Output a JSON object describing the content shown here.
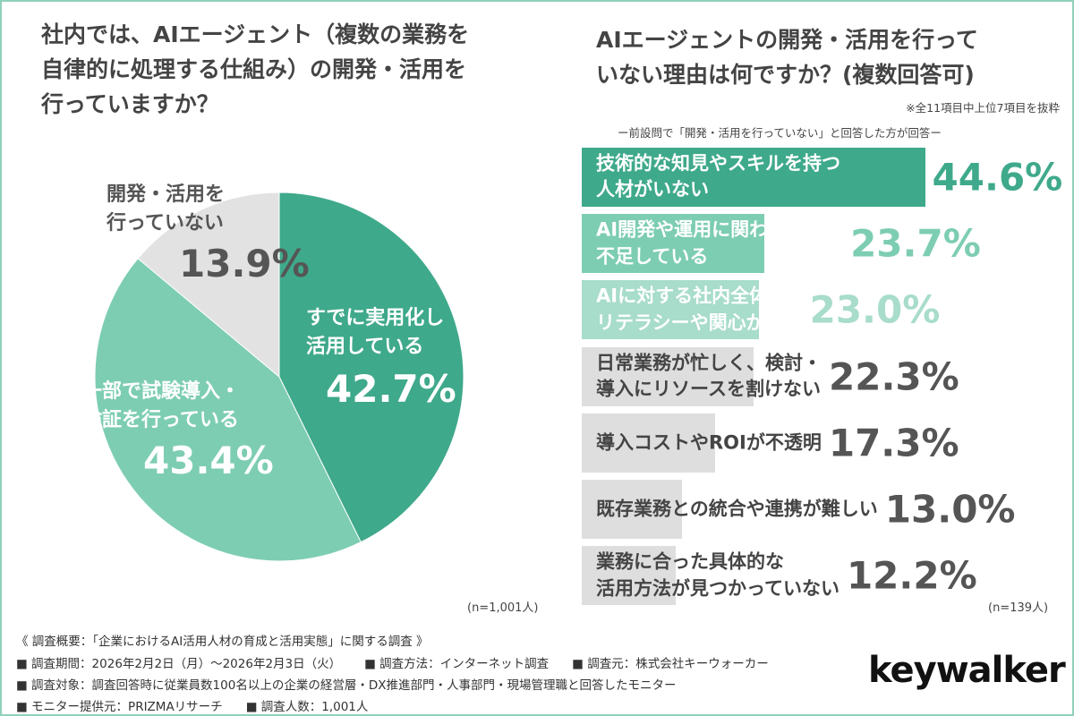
{
  "chart_data": [
    {
      "type": "pie",
      "title": "社内では、AIエージェント（複数の業務を\n自律的に処理する仕組み）の開発・活用を\n行っていますか？",
      "categories": [
        "すでに実用化し\n活用している",
        "一部で試験導入・\n検証を行っている",
        "開発・活用を\n行っていない"
      ],
      "values": [
        42.7,
        43.4,
        13.9
      ],
      "value_labels": [
        "42.7%",
        "43.4%",
        "13.9%"
      ],
      "colors": [
        "#3fa98b",
        "#7dcdb3",
        "#e2e2e2"
      ],
      "note": "(n=1,001人)"
    },
    {
      "type": "barh",
      "title": "AIエージェントの開発・活用を行って\nいない理由は何ですか？(複数回答可)",
      "annotation": "※全11項目中上位7項目を抜粋",
      "subtitle": "ー前設問で「開発・活用を行っていない」と回答した方が回答ー",
      "categories": [
        "技術的な知見やスキルを持つ\n人材がいない",
        "AI開発や運用に関わる人材が\n不足している",
        "AIに対する社内全体の\nリテラシーや関心が低い",
        "日常業務が忙しく、検討・\n導入にリソースを割けない",
        "導入コストやROIが不透明",
        "既存業務との統合や連携が難しい",
        "業務に合った具体的な\n活用方法が見つかっていない"
      ],
      "values": [
        44.6,
        23.7,
        23.0,
        22.3,
        17.3,
        13.0,
        12.2
      ],
      "value_labels": [
        "44.6%",
        "23.7%",
        "23.0%",
        "22.3%",
        "17.3%",
        "13.0%",
        "12.2%"
      ],
      "colors": [
        "#3fa98b",
        "#7dcdb3",
        "#a8dccb",
        "#dedede",
        "#dedede",
        "#dedede",
        "#dedede"
      ],
      "value_label_colors": [
        "#3fa98b",
        "#7dcdb3",
        "#a8dccb",
        "#555555",
        "#555555",
        "#555555",
        "#555555"
      ],
      "xlim": [
        0,
        50
      ],
      "note": "(n=139人)"
    }
  ],
  "footer": {
    "heading": "《 調査概要：「企業におけるAI活用人材の育成と活用実態」に関する調査 》",
    "items": [
      "調査期間：2026年2月2日（月）～2026年2月3日（火）",
      "調査方法：インターネット調査",
      "調査元：株式会社キーウォーカー",
      "調査対象：調査回答時に従業員数100名以上の企業の経営層・DX推進部門・人事部門・現場管理職と回答したモニター",
      "モニター提供元：PRIZMAリサーチ",
      "調査人数：1,001人"
    ],
    "logo": "keywalker"
  }
}
